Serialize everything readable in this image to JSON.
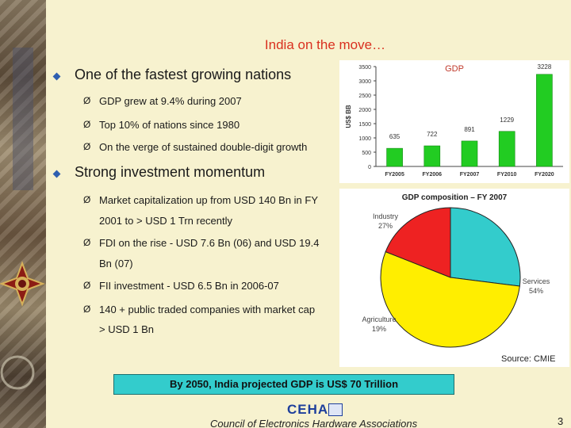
{
  "slide": {
    "title": "India on the move…",
    "page_number": "3",
    "banner": "By 2050, India projected GDP is US$ 70 Trillion",
    "footer_org": "Council of Electronics Hardware Associations",
    "logo_text": "CEHA"
  },
  "bullets": {
    "b1": {
      "text": "One of the fastest growing nations",
      "subs": [
        "GDP grew at 9.4% during 2007",
        "Top 10% of nations since 1980",
        "On the verge of sustained double-digit growth"
      ]
    },
    "b2": {
      "text": "Strong investment momentum",
      "lines": [
        "Market capitalization up from USD 140 Bn in FY",
        "2001 to > USD 1 Trn recently",
        "FDI on the rise - USD 7.6 Bn (06) and USD 19.4",
        "Bn (07)",
        "FII investment - USD 6.5 Bn in 2006-07",
        "140 + public traded companies with market cap",
        "> USD 1 Bn"
      ]
    }
  },
  "colors": {
    "accent_title": "#d9301f",
    "bullet_diamond": "#2f5fb0",
    "bar_green": "#22cc22",
    "pie_industry": "#33cccc",
    "pie_agriculture": "#ee2222",
    "pie_services": "#ffee00",
    "banner_bg": "#33cccc"
  },
  "chart_data": [
    {
      "type": "bar",
      "title": "GDP",
      "ylabel": "US$ BB",
      "xlabel": "",
      "ylim": [
        0,
        3500
      ],
      "yticks": [
        "0",
        "500",
        "1000",
        "1500",
        "2000",
        "2500",
        "3000",
        "3500"
      ],
      "categories": [
        "FY2005",
        "FY2006",
        "FY2007",
        "FY2010",
        "FY2020"
      ],
      "values": [
        635,
        722,
        891,
        1229,
        3228
      ],
      "value_labels": [
        "635",
        "722",
        "891",
        "1229",
        "3228"
      ],
      "grid": false
    },
    {
      "type": "pie",
      "title": "GDP composition – FY 2007",
      "slices": [
        {
          "name": "Industry",
          "value": 27,
          "label": "27%"
        },
        {
          "name": "Services",
          "value": 54,
          "label": "54%"
        },
        {
          "name": "Agriculture",
          "value": 19,
          "label": "19%"
        }
      ],
      "source": "Source: CMIE"
    }
  ]
}
